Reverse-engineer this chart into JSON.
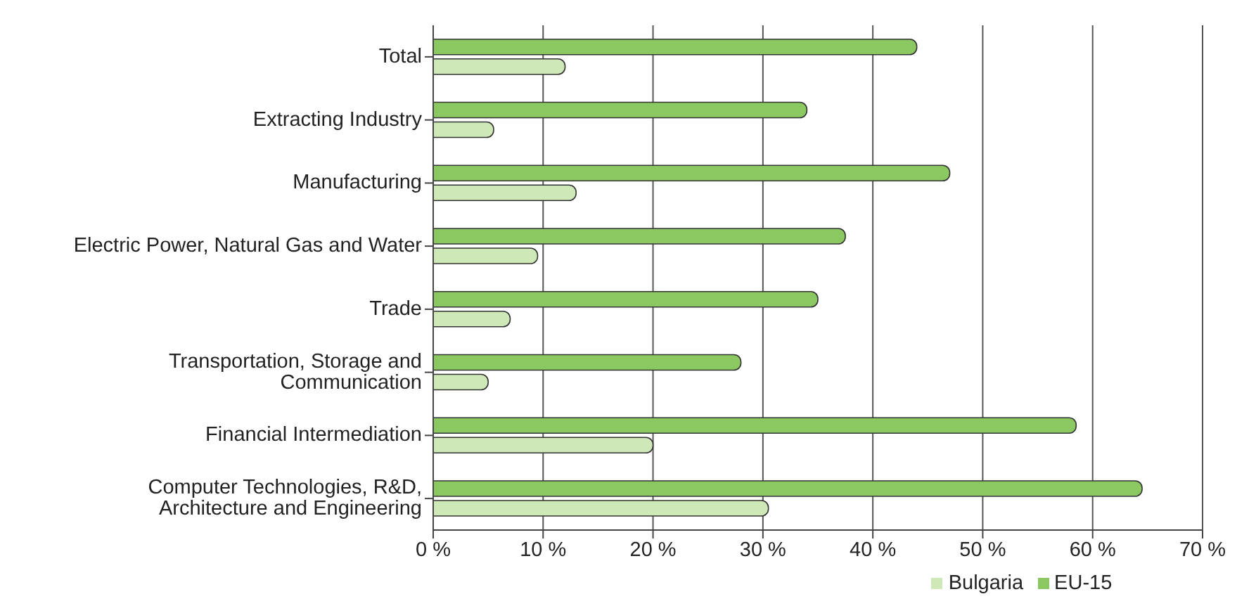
{
  "chart_data": {
    "type": "bar",
    "orientation": "horizontal",
    "categories": [
      "Total",
      "Extracting Industry",
      "Manufacturing",
      "Electric Power, Natural Gas and Water",
      "Trade",
      "Transportation, Storage and Communication",
      "Financial Intermediation",
      "Computer Technologies, R&D, Architecture and Engineering"
    ],
    "series": [
      {
        "name": "EU-15",
        "color": "#8cc862",
        "values": [
          44,
          34,
          47,
          37.5,
          35,
          28,
          58.5,
          64.5
        ]
      },
      {
        "name": "Bulgaria",
        "color": "#cfe8b8",
        "values": [
          12,
          5.5,
          13,
          9.5,
          7,
          5,
          20,
          30.5
        ]
      }
    ],
    "xlim": [
      0,
      70
    ],
    "xticks": [
      {
        "value": 0,
        "label": "0 %"
      },
      {
        "value": 10,
        "label": "10 %"
      },
      {
        "value": 20,
        "label": "20 %"
      },
      {
        "value": 30,
        "label": "30 %"
      },
      {
        "value": 40,
        "label": "40 %"
      },
      {
        "value": 50,
        "label": "50 %"
      },
      {
        "value": 60,
        "label": "60 %"
      },
      {
        "value": 70,
        "label": "70 %"
      }
    ],
    "grid": "x",
    "legend": "bottom"
  }
}
